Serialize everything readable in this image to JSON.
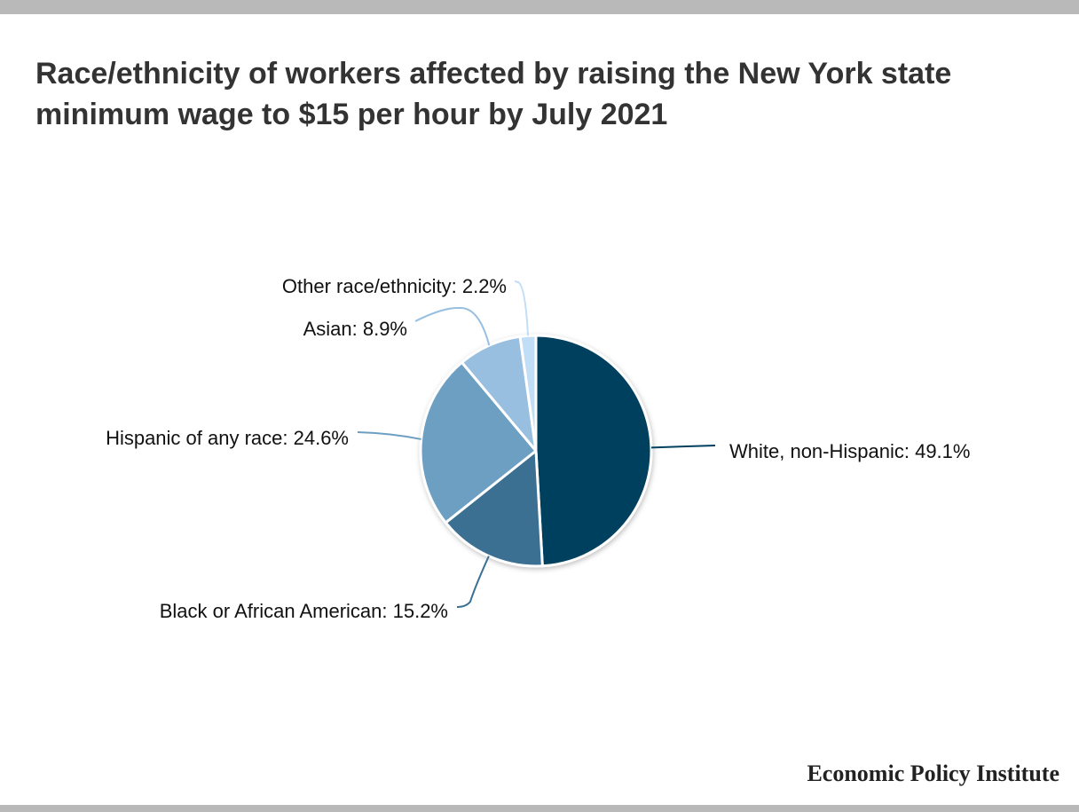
{
  "title": "Race/ethnicity of workers affected by raising the New York state minimum wage to $15 per hour by July 2021",
  "source": "Economic Policy Institute",
  "chart_data": {
    "type": "pie",
    "title": "Race/ethnicity of workers affected by raising the New York state minimum wage to $15 per hour by July 2021",
    "slices": [
      {
        "label": "White, non-Hispanic: 49.1%",
        "name": "White, non-Hispanic",
        "value": 49.1,
        "color": "#00405f"
      },
      {
        "label": "Black or African American: 15.2%",
        "name": "Black or African American",
        "value": 15.2,
        "color": "#3a7093"
      },
      {
        "label": "Hispanic of any race: 24.6%",
        "name": "Hispanic of any race",
        "value": 24.6,
        "color": "#6d9fc2"
      },
      {
        "label": "Asian: 8.9%",
        "name": "Asian",
        "value": 8.9,
        "color": "#98bfe0"
      },
      {
        "label": "Other race/ethnicity: 2.2%",
        "name": "Other race/ethnicity",
        "value": 2.2,
        "color": "#c2ddf6"
      }
    ]
  },
  "colors": {
    "frame_bar": "#b9b9b9",
    "title_text": "#333333"
  }
}
